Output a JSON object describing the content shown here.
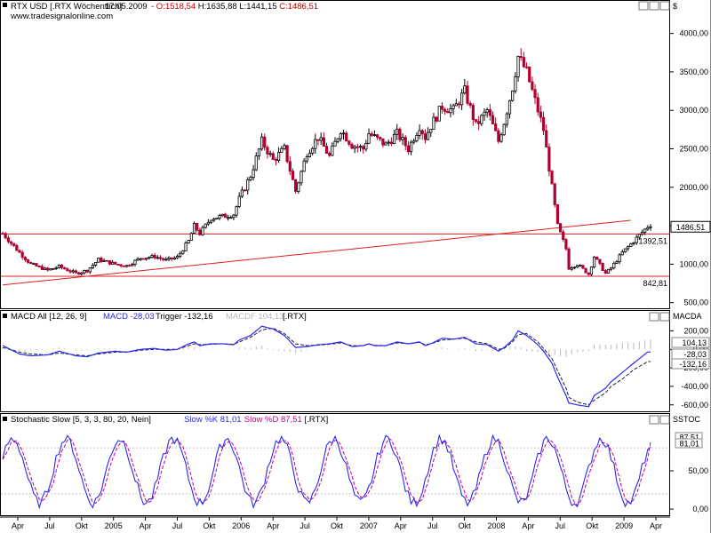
{
  "header": {
    "instrument": "RTX USD [.RTX  Wöchentlich]",
    "date": "17.05.2009",
    "ohlc": [
      {
        "label": "O:",
        "value": "1518,54",
        "color": "#c00000"
      },
      {
        "label": "H:",
        "value": "1635,88",
        "color": "#000000"
      },
      {
        "label": "L:",
        "value": "1441,15",
        "color": "#000000"
      },
      {
        "label": "C:",
        "value": "1486,51",
        "color": "#c00000"
      }
    ],
    "website": "www.tradesignalonline.com",
    "currency": "$"
  },
  "colors": {
    "up": "#000000",
    "down": "#b00030",
    "support": "#e02020",
    "macd": "#2a2af0",
    "trigger": "#1a1a40",
    "histogram": "#b8b8b8",
    "stoch_k": "#2a2af0",
    "stoch_d": "#c00090"
  },
  "x_axis": {
    "labels": [
      "Apr",
      "Jul",
      "Okt",
      "2005",
      "Apr",
      "Jul",
      "Okt",
      "2006",
      "Apr",
      "Jul",
      "Okt",
      "2007",
      "Apr",
      "Jul",
      "Okt",
      "2008",
      "Apr",
      "Jul",
      "Okt",
      "2009",
      "Apr"
    ]
  },
  "chart_data": [
    {
      "type": "candlestick",
      "title": "RTX USD [.RTX  Wöchentlich]",
      "ylim": [
        450,
        4250
      ],
      "ytick_labels": [
        "500,00",
        "1000,00",
        "1500,00",
        "2000,00",
        "2500,00",
        "3000,00",
        "3500,00",
        "4000,00"
      ],
      "yticks": [
        500,
        1000,
        1500,
        2000,
        2500,
        3000,
        3500,
        4000
      ],
      "anchors_x": [
        0,
        6,
        10,
        16,
        20,
        26,
        30,
        34,
        40,
        44,
        49,
        54,
        58,
        62,
        66,
        68,
        70,
        74,
        78,
        82,
        84,
        88,
        92,
        96,
        100,
        104,
        108,
        112,
        116,
        120,
        124,
        128,
        130,
        132,
        136,
        140,
        144,
        148,
        150,
        152,
        156,
        160,
        164,
        168,
        172,
        176,
        178,
        181,
        183,
        186,
        190,
        192,
        195,
        197,
        200,
        201,
        204,
        208,
        210,
        214,
        216,
        220,
        224,
        229
      ],
      "anchors_close": [
        1400,
        1150,
        1000,
        920,
        970,
        880,
        920,
        1060,
        1000,
        980,
        1080,
        1100,
        1050,
        1090,
        1300,
        1500,
        1400,
        1600,
        1620,
        1650,
        1850,
        2150,
        2600,
        2350,
        2500,
        1950,
        2450,
        2650,
        2400,
        2750,
        2550,
        2500,
        2700,
        2650,
        2550,
        2700,
        2500,
        2800,
        2650,
        2800,
        3050,
        3000,
        3250,
        2800,
        3000,
        2600,
        2850,
        3300,
        3700,
        3500,
        3000,
        2750,
        2000,
        1500,
        1200,
        950,
        1000,
        870,
        1100,
        880,
        950,
        1150,
        1300,
        1490
      ],
      "last_close": 1486.51,
      "last_close_label": "1486,51",
      "horizontal_lines": [
        {
          "value": 1392.51,
          "label": "1392,51"
        },
        {
          "value": 842.81,
          "label": "842,81"
        }
      ],
      "trendline": {
        "from": [
          0,
          730
        ],
        "to": [
          223,
          1570
        ]
      }
    },
    {
      "type": "line",
      "title": "MACD All [12, 26, 9]",
      "legend": [
        {
          "text": "MACD All [12, 26, 9]",
          "color": "#000000"
        },
        {
          "text": "MACD -28,03",
          "color": "#2a2af0"
        },
        {
          "text": "Trigger -132,16",
          "color": "#000000"
        },
        {
          "text": "MACDF 104,13",
          "color": "#b8b8b8"
        },
        {
          "text": "[.RTX]",
          "color": "#000000"
        }
      ],
      "panel_label": "MACDA",
      "ylim": [
        -660,
        300
      ],
      "yticks": [
        -600,
        -400,
        -200,
        0,
        200
      ],
      "ytick_labels": [
        "-600,00",
        "-400,00",
        "-200,00",
        "0,00",
        "200,00"
      ],
      "series": [
        {
          "name": "MACD",
          "values_at_anchors": [
            40,
            -50,
            -70,
            -60,
            -20,
            -70,
            -80,
            -40,
            -20,
            -30,
            0,
            10,
            -10,
            0,
            60,
            80,
            40,
            60,
            60,
            50,
            100,
            150,
            250,
            220,
            150,
            20,
            30,
            50,
            60,
            80,
            30,
            40,
            60,
            40,
            40,
            80,
            60,
            80,
            40,
            60,
            120,
            110,
            130,
            60,
            50,
            -20,
            20,
            100,
            200,
            150,
            50,
            -20,
            -150,
            -300,
            -500,
            -580,
            -600,
            -620,
            -500,
            -420,
            -350,
            -250,
            -150,
            -28.03
          ]
        },
        {
          "name": "Trigger",
          "values_at_anchors": [
            20,
            -30,
            -50,
            -60,
            -40,
            -60,
            -70,
            -50,
            -30,
            -30,
            -10,
            0,
            0,
            0,
            40,
            60,
            50,
            55,
            60,
            55,
            80,
            130,
            210,
            230,
            170,
            60,
            40,
            45,
            55,
            70,
            40,
            40,
            55,
            45,
            40,
            70,
            60,
            75,
            50,
            60,
            100,
            110,
            120,
            80,
            60,
            0,
            10,
            80,
            160,
            170,
            80,
            10,
            -100,
            -230,
            -420,
            -520,
            -570,
            -600,
            -550,
            -470,
            -400,
            -320,
            -220,
            -132.16
          ]
        },
        {
          "name": "Histogram",
          "values_at_anchors": [
            20,
            -20,
            -20,
            0,
            20,
            -10,
            -10,
            10,
            10,
            0,
            10,
            10,
            -10,
            0,
            20,
            20,
            -10,
            5,
            0,
            -5,
            20,
            20,
            40,
            -10,
            -20,
            -40,
            -10,
            5,
            5,
            10,
            -10,
            0,
            5,
            -5,
            0,
            10,
            0,
            5,
            -10,
            0,
            20,
            0,
            10,
            -20,
            -10,
            -20,
            10,
            20,
            40,
            -20,
            -30,
            -30,
            -50,
            -70,
            -80,
            -60,
            -30,
            -20,
            50,
            50,
            50,
            70,
            70,
            104.13
          ]
        }
      ],
      "last_labels": [
        {
          "value": 104.13,
          "label": "104,13",
          "color": "#b8b8b8"
        },
        {
          "value": -28.03,
          "label": "-28,03",
          "color": "#2a2af0"
        },
        {
          "value": -132.16,
          "label": "-132,16",
          "color": "#000000"
        }
      ]
    },
    {
      "type": "line",
      "title": "Stochastic Slow [5, 3, 3, 80, 20, Nein]",
      "legend": [
        {
          "text": "Stochastic Slow [5, 3, 3, 80, 20, Nein]",
          "color": "#000000"
        },
        {
          "text": "Slow %K 81,01",
          "color": "#2a2af0"
        },
        {
          "text": "Slow %D 87,51",
          "color": "#c00090"
        },
        {
          "text": "[.RTX]",
          "color": "#000000"
        }
      ],
      "panel_label": "SSTOC",
      "ylim": [
        -8,
        108
      ],
      "yticks": [
        0,
        50
      ],
      "ytick_labels": [
        "0,00",
        "50,00"
      ],
      "overbought": 80,
      "oversold": 20,
      "series": [
        {
          "name": "Slow %K",
          "period": 9.5,
          "last": 81.01
        },
        {
          "name": "Slow %D",
          "period": 9.5,
          "last": 87.51
        }
      ],
      "last_labels": [
        {
          "value": 87.51,
          "label": "87,51",
          "color": "#c00090"
        },
        {
          "value": 81.01,
          "label": "81,01",
          "color": "#2a2af0"
        }
      ]
    }
  ]
}
